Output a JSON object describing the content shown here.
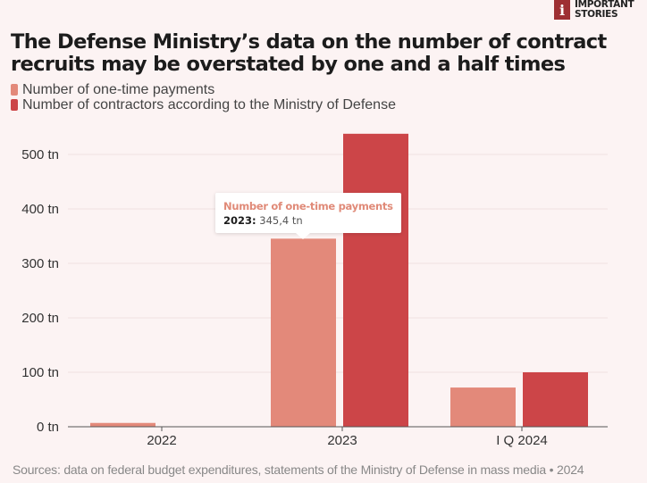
{
  "logo": {
    "mark": "i",
    "line1": "IMPORTANT",
    "line2": "STORIES"
  },
  "title": "The Defense Ministry’s data on the number of contract recruits may be overstated by one and a half times",
  "legend": [
    {
      "label": "Number of one-time payments",
      "color": "#e3897a"
    },
    {
      "label": "Number of contractors according to the Ministry of Defense",
      "color": "#cc4548"
    }
  ],
  "tooltip": {
    "series": "Number of one-time payments",
    "category": "2023:",
    "value": "345,4 tn"
  },
  "source": "Sources: data on federal budget expenditures, statements of the Ministry of Defense in mass media • 2024",
  "chart_data": {
    "type": "bar",
    "title": "The Defense Ministry’s data on the number of contract recruits may be overstated by one and a half times",
    "xlabel": "",
    "ylabel": "",
    "categories": [
      "2022",
      "2023",
      "I Q 2024"
    ],
    "series": [
      {
        "name": "Number of one-time payments",
        "color": "#e3897a",
        "values": [
          7,
          345.4,
          72
        ]
      },
      {
        "name": "Number of contractors according to the Ministry of Defense",
        "color": "#cc4548",
        "values": [
          0,
          538,
          100
        ]
      }
    ],
    "ylim": [
      0,
      560
    ],
    "yticks": [
      0,
      100,
      200,
      300,
      400,
      500
    ],
    "ytick_labels": [
      "0 tn",
      "100 tn",
      "200 tn",
      "300 tn",
      "400 tn",
      "500 tn"
    ],
    "grid": true,
    "legend_position": "top-left"
  }
}
